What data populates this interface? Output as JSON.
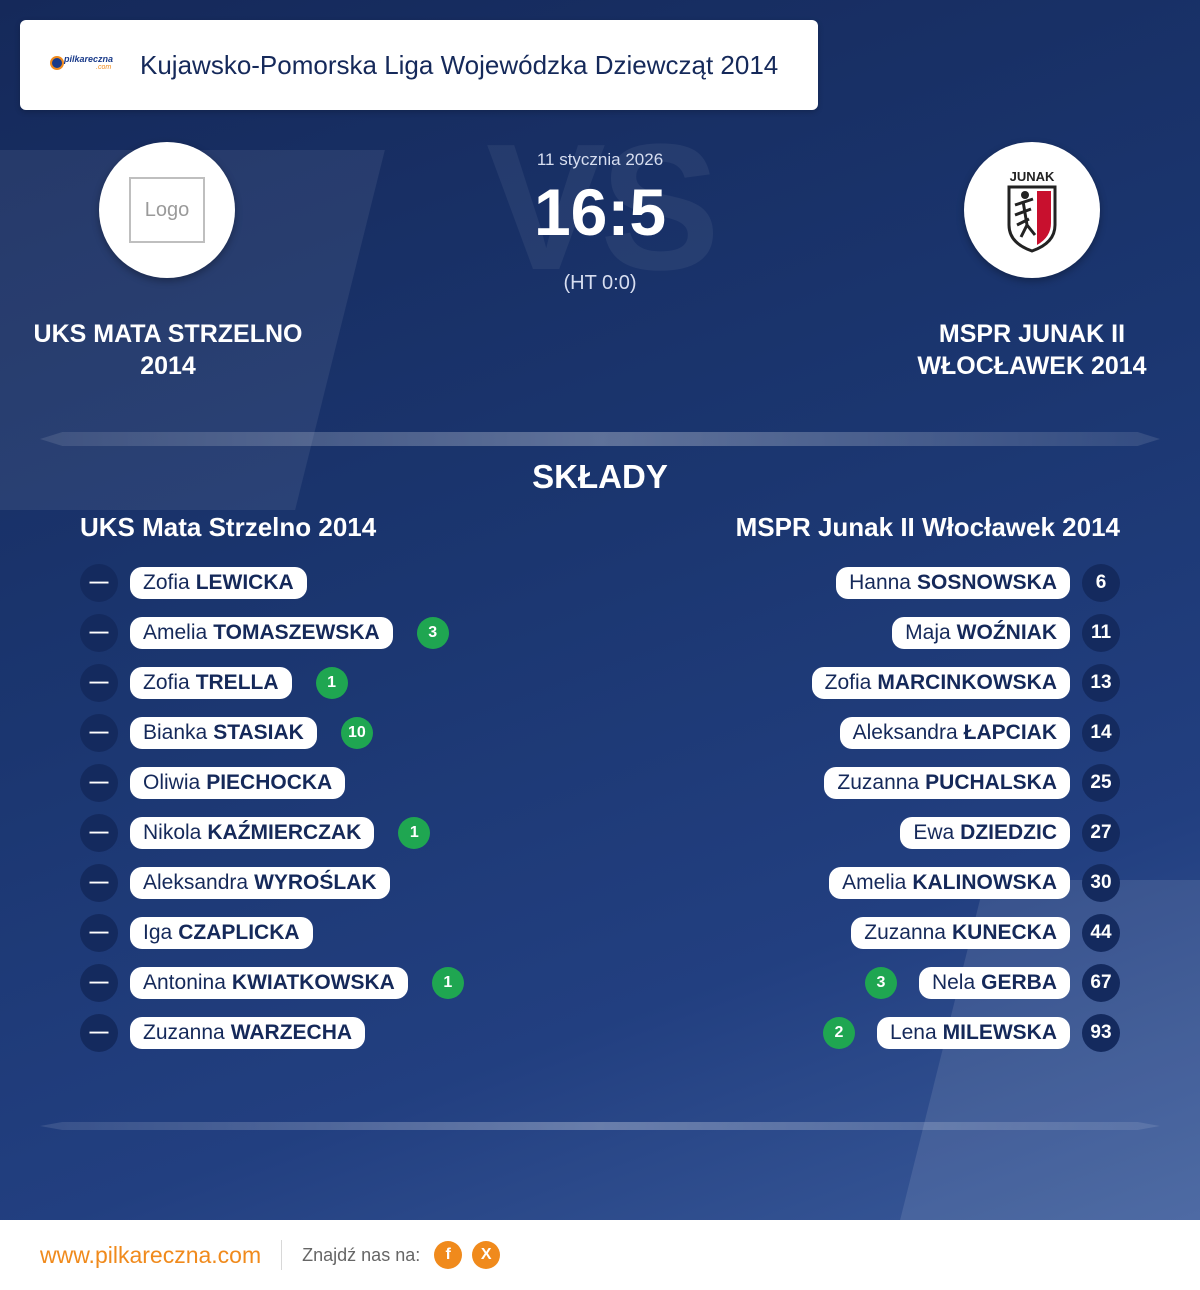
{
  "header": {
    "brand_text": "pilkareczna",
    "brand_suffix": ".com",
    "league_title": "Kujawsko-Pomorska Liga Wojewódzka Dziewcząt 2014"
  },
  "match": {
    "date": "11 stycznia 2026",
    "score": "16:5",
    "halftime": "(HT 0:0)",
    "vs_text": "VS"
  },
  "home_team": {
    "name": "UKS MATA STRZELNO 2014",
    "logo_placeholder": "Logo",
    "lineup_title": "UKS Mata Strzelno 2014",
    "players": [
      {
        "number": "—",
        "first": "Zofia",
        "last": "LEWICKA",
        "goals": ""
      },
      {
        "number": "—",
        "first": "Amelia",
        "last": "TOMASZEWSKA",
        "goals": "3"
      },
      {
        "number": "—",
        "first": "Zofia",
        "last": "TRELLA",
        "goals": "1"
      },
      {
        "number": "—",
        "first": "Bianka",
        "last": "STASIAK",
        "goals": "10"
      },
      {
        "number": "—",
        "first": "Oliwia",
        "last": "PIECHOCKA",
        "goals": ""
      },
      {
        "number": "—",
        "first": "Nikola",
        "last": "KAŹMIERCZAK",
        "goals": "1"
      },
      {
        "number": "—",
        "first": "Aleksandra",
        "last": "WYROŚLAK",
        "goals": ""
      },
      {
        "number": "—",
        "first": "Iga",
        "last": "CZAPLICKA",
        "goals": ""
      },
      {
        "number": "—",
        "first": "Antonina",
        "last": "KWIATKOWSKA",
        "goals": "1"
      },
      {
        "number": "—",
        "first": "Zuzanna",
        "last": "WARZECHA",
        "goals": ""
      }
    ]
  },
  "away_team": {
    "name": "MSPR JUNAK II WŁOCŁAWEK 2014",
    "logo_text": "JUNAK",
    "lineup_title": "MSPR Junak II Włocławek 2014",
    "players": [
      {
        "number": "6",
        "first": "Hanna",
        "last": "SOSNOWSKA",
        "goals": ""
      },
      {
        "number": "11",
        "first": "Maja",
        "last": "WOŹNIAK",
        "goals": ""
      },
      {
        "number": "13",
        "first": "Zofia",
        "last": "MARCINKOWSKA",
        "goals": ""
      },
      {
        "number": "14",
        "first": "Aleksandra",
        "last": "ŁAPCIAK",
        "goals": ""
      },
      {
        "number": "25",
        "first": "Zuzanna",
        "last": "PUCHALSKA",
        "goals": ""
      },
      {
        "number": "27",
        "first": "Ewa",
        "last": "DZIEDZIC",
        "goals": ""
      },
      {
        "number": "30",
        "first": "Amelia",
        "last": "KALINOWSKA",
        "goals": ""
      },
      {
        "number": "44",
        "first": "Zuzanna",
        "last": "KUNECKA",
        "goals": ""
      },
      {
        "number": "67",
        "first": "Nela",
        "last": "GERBA",
        "goals": "3"
      },
      {
        "number": "93",
        "first": "Lena",
        "last": "MILEWSKA",
        "goals": "2"
      }
    ]
  },
  "section": {
    "lineups_title": "SKŁADY"
  },
  "footer": {
    "site": "www.pilkareczna.com",
    "find_us": "Znajdź nas na:",
    "social": [
      {
        "icon": "facebook-icon",
        "glyph": "f"
      },
      {
        "icon": "x-icon",
        "glyph": "X"
      }
    ]
  },
  "colors": {
    "navy": "#15295a",
    "accent_orange": "#f08a1c",
    "goal_green": "#1fa651",
    "badge_navy": "#142a5e"
  }
}
